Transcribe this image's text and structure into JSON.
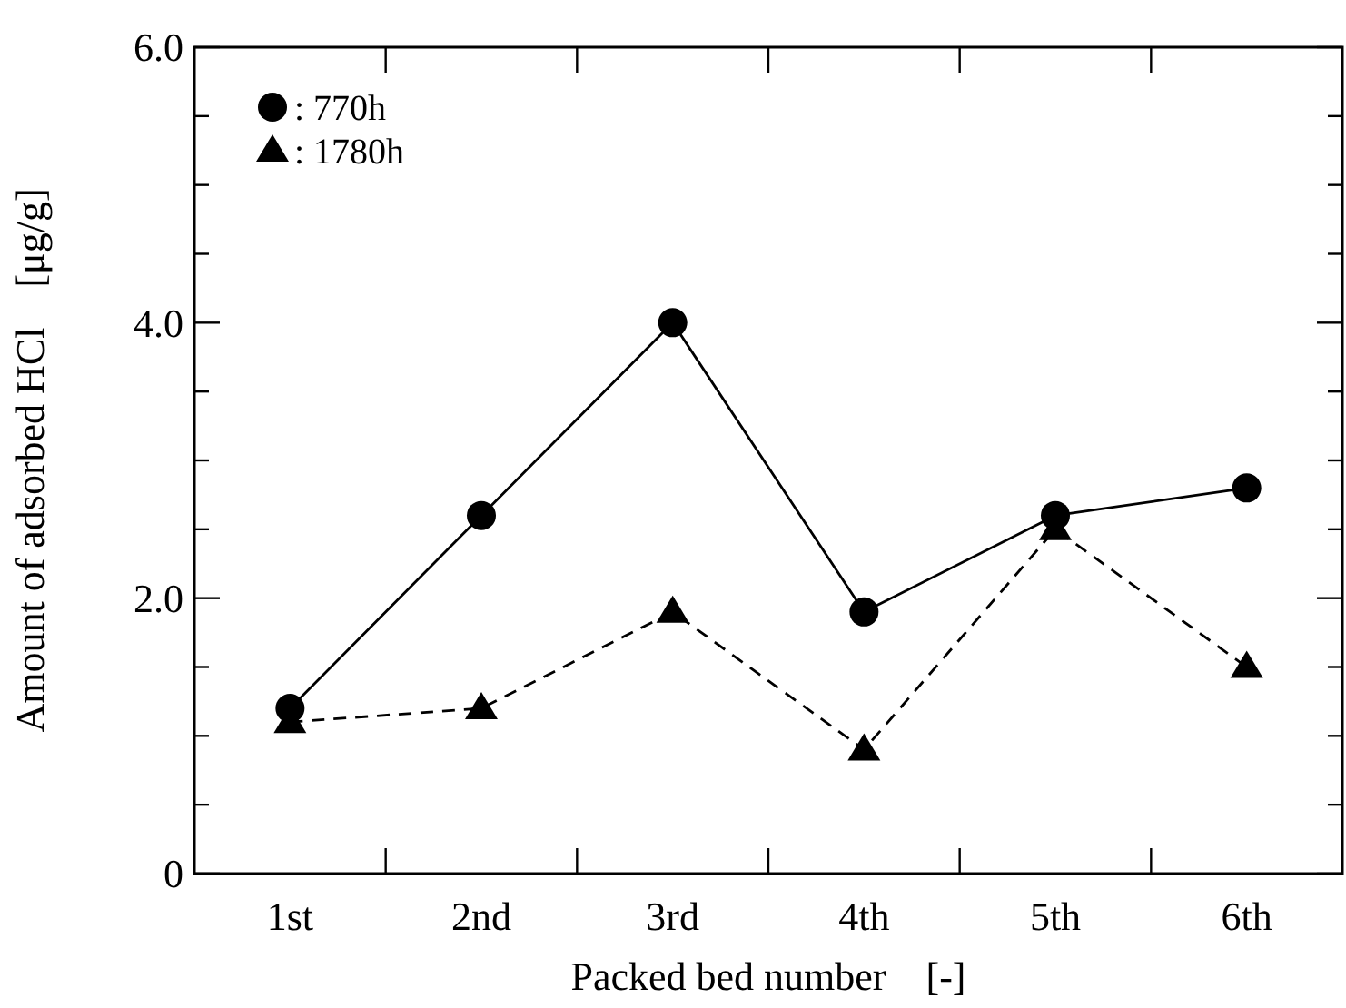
{
  "chart_data": {
    "type": "line",
    "xlabel": "Packed bed number    [-]",
    "ylabel": "Amount of adsorbed HCl    [μg/g]",
    "categories": [
      "1st",
      "2nd",
      "3rd",
      "4th",
      "5th",
      "6th"
    ],
    "series": [
      {
        "name": ": 770h",
        "color": "#000000",
        "values": [
          1.2,
          2.6,
          4.0,
          1.9,
          2.6,
          2.8
        ],
        "marker": "circle",
        "line_style": "solid"
      },
      {
        "name": ": 1780h",
        "color": "#000000",
        "values": [
          1.1,
          1.2,
          1.9,
          0.9,
          2.5,
          1.5
        ],
        "marker": "triangle",
        "line_style": "dashed"
      }
    ],
    "ylim": [
      0,
      6
    ],
    "yticks": [
      {
        "value": 0,
        "label": "0"
      },
      {
        "value": 0.5,
        "label": null
      },
      {
        "value": 1,
        "label": null
      },
      {
        "value": 1.5,
        "label": null
      },
      {
        "value": 2,
        "label": "2.0"
      },
      {
        "value": 2.5,
        "label": null
      },
      {
        "value": 3,
        "label": null
      },
      {
        "value": 3.5,
        "label": null
      },
      {
        "value": 4,
        "label": "4.0"
      },
      {
        "value": 4.5,
        "label": null
      },
      {
        "value": 5,
        "label": null
      },
      {
        "value": 5.5,
        "label": null
      },
      {
        "value": 6,
        "label": "6.0"
      }
    ],
    "grid": false,
    "legend": "top left"
  }
}
